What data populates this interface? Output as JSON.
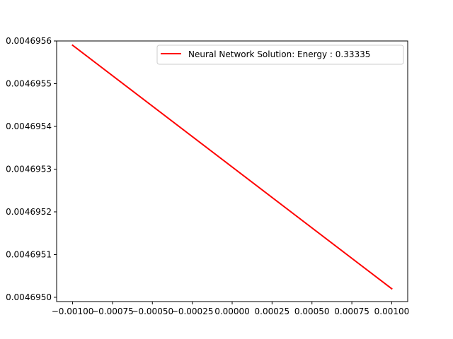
{
  "chart_data": {
    "type": "line",
    "title": "",
    "xlabel": "",
    "ylabel": "",
    "xlim": [
      -0.0011,
      0.0011
    ],
    "ylim": [
      0.00469499,
      0.0046956
    ],
    "x_ticks": [
      -0.001,
      -0.00075,
      -0.0005,
      -0.00025,
      0.0,
      0.00025,
      0.0005,
      0.00075,
      0.001
    ],
    "x_tick_labels": [
      "−0.00100",
      "−0.00075",
      "−0.00050",
      "−0.00025",
      "0.00000",
      "0.00025",
      "0.00050",
      "0.00075",
      "0.00100"
    ],
    "y_ticks": [
      0.004695,
      0.0046951,
      0.0046952,
      0.0046953,
      0.0046954,
      0.0046955,
      0.0046956
    ],
    "y_tick_labels": [
      "0.0046950",
      "0.0046951",
      "0.0046952",
      "0.0046953",
      "0.0046954",
      "0.0046955",
      "0.0046956"
    ],
    "grid": false,
    "legend": "top-right",
    "series": [
      {
        "name": "Neural Network Solution: Energy : 0.33335",
        "color": "#ff0000",
        "x": [
          -0.001,
          0.001
        ],
        "y": [
          0.00469559,
          0.00469502
        ]
      }
    ]
  }
}
